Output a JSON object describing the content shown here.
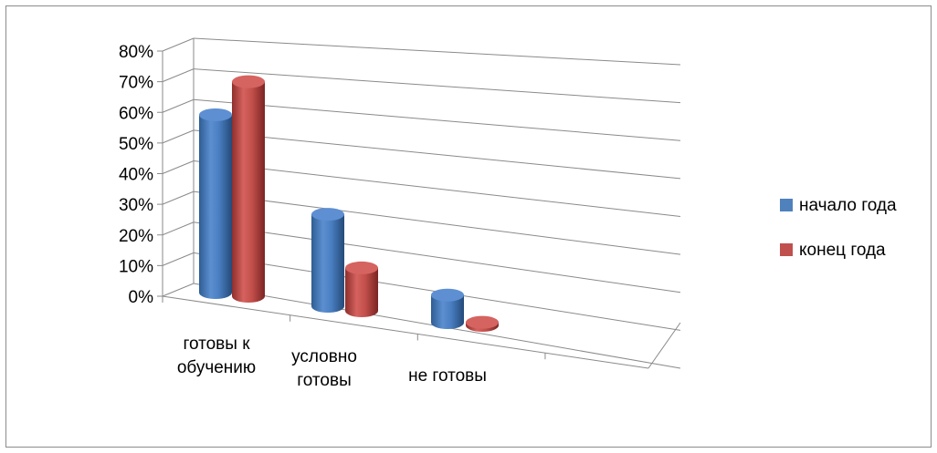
{
  "chart_data": {
    "type": "bar",
    "title": "",
    "xlabel": "",
    "ylabel": "",
    "ylim": [
      0,
      0.8
    ],
    "y_ticks": [
      "0%",
      "10%",
      "20%",
      "30%",
      "40%",
      "50%",
      "60%",
      "70%",
      "80%"
    ],
    "y_tick_values": [
      0,
      0.1,
      0.2,
      0.3,
      0.4,
      0.5,
      0.6,
      0.7,
      0.8
    ],
    "categories": [
      {
        "lines": [
          "готовы к",
          "обучению"
        ]
      },
      {
        "lines": [
          "условно",
          "готовы"
        ]
      },
      {
        "lines": [
          "не готовы"
        ]
      }
    ],
    "series": [
      {
        "name": "начало года",
        "values": [
          0.58,
          0.3,
          0.09
        ],
        "color": "#4f81bd"
      },
      {
        "name": "конец года",
        "values": [
          0.7,
          0.14,
          0.01
        ],
        "color": "#c0504d"
      }
    ],
    "grid": true,
    "legend": "right",
    "style": "3d-cylinder"
  }
}
